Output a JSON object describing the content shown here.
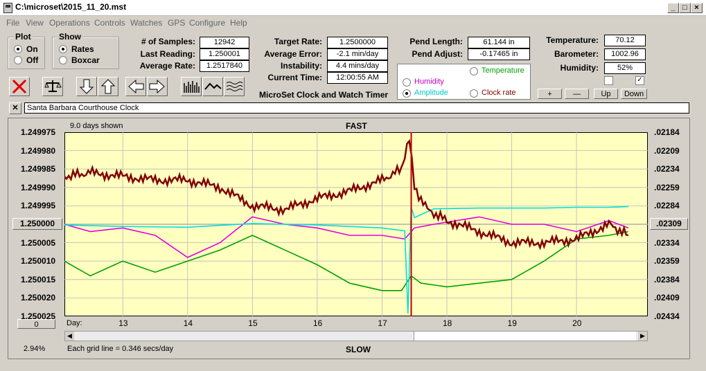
{
  "window": {
    "title": "C:\\microset\\2015_11_20.mst"
  },
  "menu": [
    "File",
    "View",
    "Operations",
    "Controls",
    "Watches",
    "GPS",
    "Configure",
    "Help"
  ],
  "plot": {
    "title": "Plot",
    "on": "On",
    "off": "Off"
  },
  "show": {
    "title": "Show",
    "rates": "Rates",
    "boxcar": "Boxcar"
  },
  "stats": {
    "samples_label": "# of Samples:",
    "samples": "12942",
    "last_label": "Last Reading:",
    "last": "1.250001",
    "avg_label": "Average Rate:",
    "avg": "1.2517840"
  },
  "rate": {
    "target_label": "Target Rate:",
    "target": "1.2500000",
    "error_label": "Average Error:",
    "error": "-2.1 min/day",
    "instab_label": "Instability:",
    "instab": "4.4 mins/day",
    "time_label": "Current Time:",
    "time": "12:00:55 AM"
  },
  "pend": {
    "length_label": "Pend Length:",
    "length": "61.144 in",
    "adjust_label": "Pend Adjust:",
    "adjust": "-0.17465 in"
  },
  "env": {
    "temp_label": "Temperature:",
    "temp": "70.12",
    "baro_label": "Barometer:",
    "baro": "1002.96",
    "hum_label": "Humidity:",
    "hum": "52%"
  },
  "overlay": {
    "temperature": "Temperature",
    "humidity": "Humidity",
    "amplitude": "Amplitude",
    "clockrate": "Clock rate"
  },
  "app_caption": "MicroSet Clock and Watch Timer",
  "adjust_buttons": {
    "plus": "+",
    "minus": "—",
    "up": "Up",
    "down": "Down"
  },
  "clock_name": "Santa Barbara Courthouse Clock",
  "graph": {
    "days_shown": "9.0 days shown",
    "fast": "FAST",
    "slow": "SLOW",
    "day_label": "Day:",
    "grid_note": "Each grid line = 0.346 secs/day",
    "percent": "2.94%",
    "left_center": "1.250000",
    "right_center": ".02309",
    "scroll_value": "0",
    "left_ticks": [
      "1.249975",
      "1.249980",
      "1.249985",
      "1.249990",
      "1.249995",
      "",
      "1.250005",
      "1.250010",
      "1.250015",
      "1.250020",
      "1.250025"
    ],
    "right_ticks": [
      ".02184",
      ".02209",
      ".02234",
      ".02259",
      ".02284",
      "",
      ".02334",
      ".02359",
      ".02384",
      ".02409",
      ".02434"
    ],
    "days": [
      "13",
      "14",
      "15",
      "16",
      "17",
      "18",
      "19",
      "20"
    ]
  },
  "colors": {
    "bg": "#ffffc0",
    "rate": "#800000",
    "amplitude": "#00e0e0",
    "humidity": "#e000e0",
    "temperature": "#00a000",
    "cursor": "#c00000"
  },
  "chart_data": {
    "type": "line",
    "x_label": "Day",
    "x_range": [
      12.1,
      21.1
    ],
    "y_range_left": [
      1.249975,
      1.250025
    ],
    "y_range_right": [
      0.02184,
      0.02434
    ],
    "series": [
      {
        "name": "Rate",
        "color": "#800000",
        "x": [
          12.1,
          12.5,
          13.0,
          13.5,
          14.0,
          14.5,
          15.0,
          15.5,
          16.0,
          16.5,
          17.0,
          17.3,
          17.35,
          17.42,
          17.5,
          17.7,
          18.0,
          18.5,
          19.0,
          19.5,
          20.0,
          20.5,
          20.8
        ],
        "y": [
          1.249987,
          1.249986,
          1.249987,
          1.249988,
          1.249988,
          1.24999,
          1.249995,
          1.249996,
          1.249993,
          1.249991,
          1.249988,
          1.249985,
          1.249982,
          1.249976,
          1.24999,
          1.249996,
          1.249999,
          1.250002,
          1.250005,
          1.250005,
          1.250004,
          1.25,
          1.250003
        ]
      },
      {
        "name": "Amplitude",
        "color": "#00e0e0",
        "x": [
          12.1,
          13.0,
          14.0,
          15.0,
          16.0,
          17.0,
          17.35,
          17.4,
          17.45,
          17.5,
          17.8,
          18.5,
          19.0,
          19.5,
          20.0,
          20.5,
          20.8
        ],
        "y": [
          0.0231,
          0.02312,
          0.02313,
          0.02308,
          0.0231,
          0.02314,
          0.02318,
          0.0243,
          0.02286,
          0.023,
          0.02288,
          0.02287,
          0.02287,
          0.02287,
          0.02286,
          0.02286,
          0.02285
        ]
      },
      {
        "name": "Humidity",
        "color": "#e000e0",
        "x": [
          12.1,
          12.5,
          13.0,
          13.5,
          14.0,
          14.5,
          15.0,
          15.5,
          16.0,
          16.5,
          17.0,
          17.35,
          17.5,
          17.8,
          18.5,
          19.0,
          19.5,
          20.0,
          20.5,
          20.8
        ],
        "y": [
          1.25,
          1.250002,
          1.250001,
          1.250003,
          1.250009,
          1.250005,
          1.249998,
          1.25,
          1.250001,
          1.250003,
          1.250003,
          1.250004,
          1.250001,
          1.25,
          1.249998,
          1.25,
          1.25,
          1.250002,
          1.249999,
          1.250001
        ]
      },
      {
        "name": "Temperature",
        "color": "#00a000",
        "x": [
          12.1,
          12.5,
          13.0,
          13.5,
          14.0,
          14.5,
          15.0,
          15.5,
          16.0,
          16.5,
          17.0,
          17.3,
          17.45,
          17.6,
          18.0,
          18.5,
          19.0,
          19.5,
          20.0,
          20.5,
          20.8
        ],
        "y": [
          1.25001,
          1.250014,
          1.25001,
          1.250013,
          1.25001,
          1.250007,
          1.250003,
          1.250007,
          1.250011,
          1.250016,
          1.250018,
          1.250018,
          1.250014,
          1.250016,
          1.250017,
          1.250016,
          1.250015,
          1.25001,
          1.250004,
          1.250003,
          1.250002
        ]
      }
    ]
  }
}
